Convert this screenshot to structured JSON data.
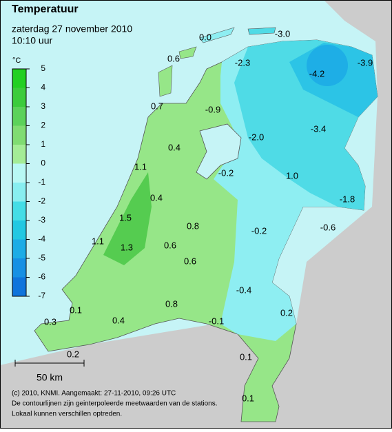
{
  "header": {
    "title": "Temperatuur",
    "date": "zaterdag 27 november 2010",
    "time": "10:10 uur"
  },
  "legend": {
    "unit": "°C",
    "ticks": [
      5,
      4,
      3,
      2,
      1,
      0,
      -1,
      -2,
      -3,
      -4,
      -5,
      -6,
      -7
    ],
    "colors": [
      "#22d022",
      "#3ccc3c",
      "#5cd25a",
      "#80dc72",
      "#a4ec96",
      "#b8f8f4",
      "#88eef0",
      "#44dde6",
      "#22c8e2",
      "#1cace6",
      "#1690e4",
      "#0f74dc"
    ]
  },
  "stations": [
    "0.0",
    "-3.0",
    "0.6",
    "-2.3",
    "-4.2",
    "-3.9",
    "0.7",
    "-0.9",
    "0.4",
    "-2.0",
    "-3.4",
    "1.1",
    "-0.2",
    "1.0",
    "0.4",
    "-1.8",
    "1.5",
    "0.8",
    "-0.2",
    "-0.6",
    "1.1",
    "1.3",
    "0.6",
    "0.6",
    "-0.4",
    "0.8",
    "0.1",
    "-0.1",
    "0.2",
    "0.3",
    "0.4",
    "0.2",
    "0.1",
    "0.1"
  ],
  "scale": "50 km",
  "footer": [
    "(c) 2010, KNMI. Aangemaakt: 27-11-2010, 09:26 UTC",
    "De contourlijnen zijn geinterpoleerde meetwaarden van de stations.",
    "Lokaal kunnen verschillen optreden."
  ]
}
